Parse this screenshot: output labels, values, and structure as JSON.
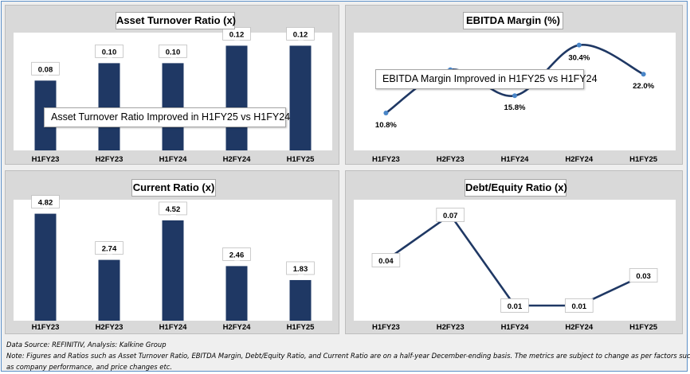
{
  "chart_data": [
    {
      "type": "bar",
      "title": "Asset Turnover Ratio (x)",
      "categories": [
        "H1FY23",
        "H2FY23",
        "H1FY24",
        "H2FY24",
        "H1FY25"
      ],
      "values": [
        0.08,
        0.1,
        0.1,
        0.12,
        0.12
      ],
      "labels": [
        "0.08",
        "0.10",
        "0.10",
        "0.12",
        "0.12"
      ],
      "ylim": [
        0,
        0.135
      ],
      "annotation": "Asset Turnover Ratio Improved in H1FY25 vs H1FY24",
      "color": "#1f3864"
    },
    {
      "type": "line",
      "title": "EBITDA Margin (%)",
      "categories": [
        "H1FY23",
        "H2FY23",
        "H1FY24",
        "H2FY24",
        "H1FY25"
      ],
      "values": [
        10.8,
        23.3,
        15.8,
        30.4,
        22.0
      ],
      "labels": [
        "10.8%",
        "23.3%",
        "15.8%",
        "30.4%",
        "22.0%"
      ],
      "ylim": [
        0,
        34
      ],
      "smooth": true,
      "annotation": "EBITDA Margin Improved in H1FY25 vs H1FY24",
      "color": "#1f3864",
      "marker_color": "#4a86c8"
    },
    {
      "type": "bar",
      "title": "Current Ratio (x)",
      "categories": [
        "H1FY23",
        "H2FY23",
        "H1FY24",
        "H2FY24",
        "H1FY25"
      ],
      "values": [
        4.82,
        2.74,
        4.52,
        2.46,
        1.83
      ],
      "labels": [
        "4.82",
        "2.74",
        "4.52",
        "2.46",
        "1.83"
      ],
      "ylim": [
        0,
        5.45
      ],
      "color": "#1f3864"
    },
    {
      "type": "line",
      "title": "Debt/Equity Ratio (x)",
      "categories": [
        "H1FY23",
        "H2FY23",
        "H1FY24",
        "H2FY24",
        "H1FY25"
      ],
      "values": [
        0.04,
        0.07,
        0.01,
        0.01,
        0.03
      ],
      "labels": [
        "0.04",
        "0.07",
        "0.01",
        "0.01",
        "0.03"
      ],
      "ylim": [
        0,
        0.08
      ],
      "smooth": false,
      "color": "#1f3864"
    }
  ],
  "footer": {
    "source": "Data Source: REFINITIV, Analysis: Kalkine Group",
    "note_line1": "Note: Figures and Ratios such as Asset Turnover Ratio, EBITDA Margin, Debt/Equity Ratio, and Current Ratio  are on a half-year December-ending basis. The metrics are subject to change as per factors such",
    "note_line2": "as company performance, and price changes etc."
  }
}
